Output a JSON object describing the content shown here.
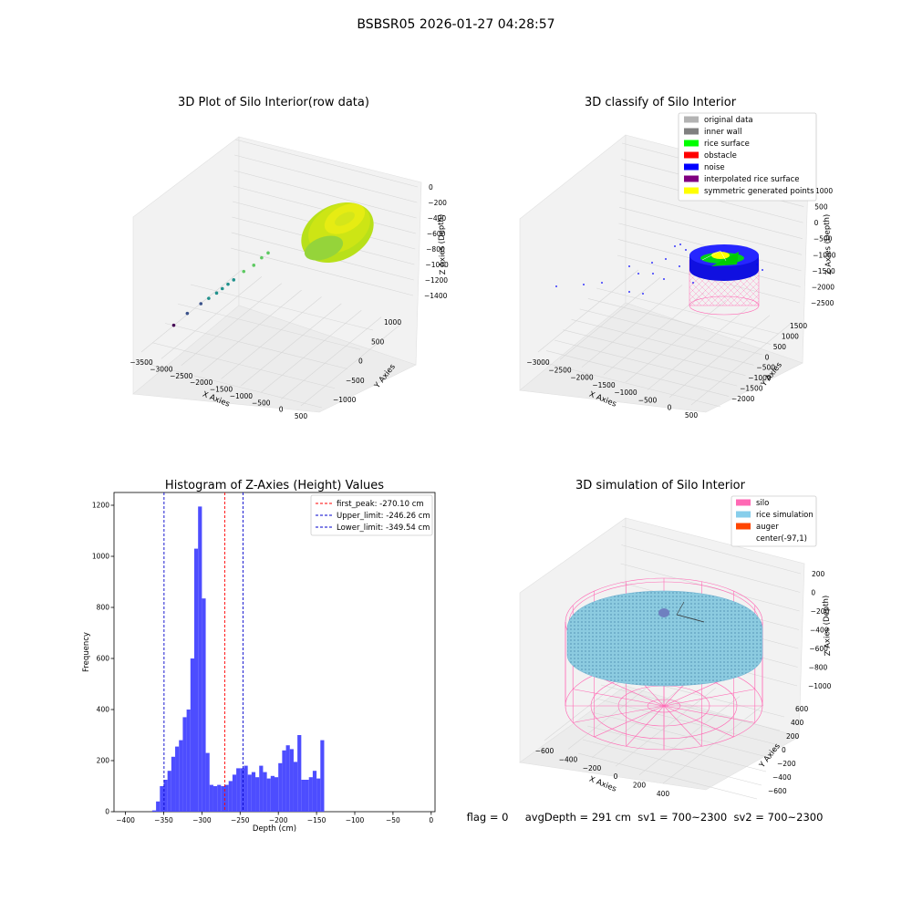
{
  "figure": {
    "suptitle": "BSBSR05 2026-01-27 04:28:57",
    "status_line": "flag = 0     avgDepth = 291 cm  sv1 = 700~2300  sv2 = 700~2300"
  },
  "chart_data": [
    {
      "type": "scatter",
      "title": "3D Plot of Silo Interior(row data)",
      "xlabel": "X Axies",
      "ylabel": "Y Axies",
      "zlabel": "Z Axies (Depth)",
      "x_ticks": [
        "−3500",
        "−3000",
        "−2500",
        "−2000",
        "−1500",
        "−1000",
        "−500",
        "0",
        "500"
      ],
      "y_ticks": [
        "−1000",
        "−500",
        "0",
        "500",
        "1000"
      ],
      "z_ticks": [
        "0",
        "−200",
        "−400",
        "−600",
        "−800",
        "−1000",
        "−1200",
        "−1400"
      ],
      "colors": [
        "#440154",
        "#3b528b",
        "#21918c",
        "#5ec962",
        "#fde725"
      ],
      "points": [
        {
          "x": -3300,
          "y": -300,
          "z": -1450,
          "c": 0
        },
        {
          "x": -3050,
          "y": -200,
          "z": -1300,
          "c": 1
        },
        {
          "x": -2800,
          "y": -100,
          "z": -1200,
          "c": 1
        },
        {
          "x": -2650,
          "y": -50,
          "z": -1150,
          "c": 2
        },
        {
          "x": -2500,
          "y": 0,
          "z": -1100,
          "c": 2
        },
        {
          "x": -2400,
          "y": 50,
          "z": -1050,
          "c": 2
        },
        {
          "x": -2300,
          "y": 100,
          "z": -1000,
          "c": 2
        },
        {
          "x": -2200,
          "y": 150,
          "z": -950,
          "c": 2
        },
        {
          "x": -2000,
          "y": 200,
          "z": -850,
          "c": 3
        },
        {
          "x": -1800,
          "y": 250,
          "z": -800,
          "c": 3
        },
        {
          "x": -1650,
          "y": 300,
          "z": -700,
          "c": 3
        },
        {
          "x": -1500,
          "y": 300,
          "z": -650,
          "c": 3
        }
      ]
    },
    {
      "type": "scatter",
      "title": "3D classify of Silo Interior",
      "xlabel": "X Axies",
      "ylabel": "Y Axies",
      "zlabel": "Z Axies (Depth)",
      "x_ticks": [
        "−3000",
        "−2500",
        "−2000",
        "−1500",
        "−1000",
        "−500",
        "0",
        "500"
      ],
      "y_ticks": [
        "−2000",
        "−1500",
        "−1000",
        "−500",
        "0",
        "500",
        "1000",
        "1500"
      ],
      "z_ticks": [
        "1000",
        "500",
        "0",
        "−500",
        "−1000",
        "−1500",
        "−2000",
        "−2500"
      ],
      "legend": [
        {
          "label": "original data",
          "color": "#b3b3b3"
        },
        {
          "label": "inner wall",
          "color": "#808080"
        },
        {
          "label": "rice surface",
          "color": "#00ff00"
        },
        {
          "label": "obstacle",
          "color": "#ff0000"
        },
        {
          "label": "noise",
          "color": "#0000ff"
        },
        {
          "label": "interpolated rice surface",
          "color": "#800080"
        },
        {
          "label": "symmetric generated points",
          "color": "#ffff00"
        }
      ]
    },
    {
      "type": "bar",
      "title": "Histogram of Z-Axies (Height) Values",
      "xlabel": "Depth (cm)",
      "ylabel": "Frequency",
      "xlim": [
        -415,
        5
      ],
      "ylim": [
        0,
        1250
      ],
      "x_ticks": [
        -400,
        -350,
        -300,
        -250,
        -200,
        -150,
        -100,
        -50,
        0
      ],
      "y_ticks": [
        0,
        200,
        400,
        600,
        800,
        1000,
        1200
      ],
      "bar_color": "#4d4dff",
      "bin_start": -365,
      "bin_width": 5,
      "values": [
        5,
        40,
        100,
        125,
        160,
        215,
        255,
        280,
        370,
        400,
        600,
        1030,
        1195,
        835,
        230,
        105,
        100,
        105,
        100,
        105,
        120,
        145,
        170,
        170,
        180,
        145,
        155,
        135,
        180,
        155,
        130,
        140,
        135,
        190,
        240,
        260,
        245,
        195,
        300,
        125,
        125,
        135,
        160,
        130,
        280
      ],
      "lines": [
        {
          "label": "first_peak: -270.10 cm",
          "x": -270.1,
          "color": "#ff0000"
        },
        {
          "label": "Upper_limit: -246.26 cm",
          "x": -246.26,
          "color": "#0000cc"
        },
        {
          "label": "Lower_limit: -349.54 cm",
          "x": -349.54,
          "color": "#0000cc"
        }
      ]
    },
    {
      "type": "scatter",
      "title": "3D simulation of Silo Interior",
      "xlabel": "X Axies",
      "ylabel": "Y Axies",
      "zlabel": "Z Axies (Depth)",
      "x_ticks": [
        "−600",
        "−400",
        "−200",
        "0",
        "200",
        "400"
      ],
      "y_ticks": [
        "−600",
        "−400",
        "−200",
        "0",
        "200",
        "400",
        "600"
      ],
      "z_ticks": [
        "200",
        "0",
        "−200",
        "−400",
        "−600",
        "−800",
        "−1000"
      ],
      "legend": [
        {
          "label": "silo",
          "color": "#ff69b4"
        },
        {
          "label": "rice simulation",
          "color": "#87ceeb"
        },
        {
          "label": "auger",
          "color": "#ff4500"
        },
        {
          "label": "center(-97,1)",
          "color": ""
        }
      ]
    }
  ]
}
